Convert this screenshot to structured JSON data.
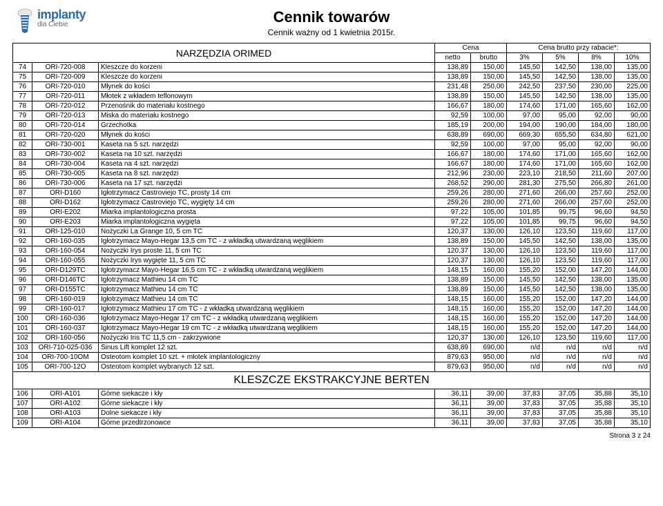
{
  "logo": {
    "line1": "implanty",
    "line2": "dla Ciebie"
  },
  "header": {
    "title": "Cennik towarów",
    "subtitle": "Cennik ważny od 1 kwietnia 2015r."
  },
  "table": {
    "section_label": "NARZĘDZIA ORIMED",
    "price_label": "Cena",
    "discount_label": "Cena brutto przy rabacie*:",
    "cols_price": [
      "netto",
      "brutto"
    ],
    "cols_disc": [
      "3%",
      "5%",
      "8%",
      "10%"
    ],
    "rows": [
      {
        "i": "74",
        "c": "ORI-720-008",
        "d": "Kleszcze do korzeni",
        "v": [
          "138,89",
          "150,00",
          "145,50",
          "142,50",
          "138,00",
          "135,00"
        ]
      },
      {
        "i": "75",
        "c": "ORI-720-009",
        "d": "Kleszcze do korzeni",
        "v": [
          "138,89",
          "150,00",
          "145,50",
          "142,50",
          "138,00",
          "135,00"
        ]
      },
      {
        "i": "76",
        "c": "ORI-720-010",
        "d": "Młynek do kości",
        "v": [
          "231,48",
          "250,00",
          "242,50",
          "237,50",
          "230,00",
          "225,00"
        ]
      },
      {
        "i": "77",
        "c": "ORI-720-011",
        "d": "Młotek z wkładem teflonowym",
        "v": [
          "138,89",
          "150,00",
          "145,50",
          "142,50",
          "138,00",
          "135,00"
        ]
      },
      {
        "i": "78",
        "c": "ORI-720-012",
        "d": "Przenośnik do materiału kostnego",
        "v": [
          "166,67",
          "180,00",
          "174,60",
          "171,00",
          "165,60",
          "162,00"
        ]
      },
      {
        "i": "79",
        "c": "ORI-720-013",
        "d": "Miska do materiału kostnego",
        "v": [
          "92,59",
          "100,00",
          "97,00",
          "95,00",
          "92,00",
          "90,00"
        ]
      },
      {
        "i": "80",
        "c": "ORI-720-014",
        "d": "Grzechotka",
        "v": [
          "185,19",
          "200,00",
          "194,00",
          "190,00",
          "184,00",
          "180,00"
        ]
      },
      {
        "i": "81",
        "c": "ORI-720-020",
        "d": "Młynek do kości",
        "v": [
          "638,89",
          "690,00",
          "669,30",
          "655,50",
          "634,80",
          "621,00"
        ]
      },
      {
        "i": "82",
        "c": "ORI-730-001",
        "d": "Kaseta na 5 szt. narzędzi",
        "v": [
          "92,59",
          "100,00",
          "97,00",
          "95,00",
          "92,00",
          "90,00"
        ]
      },
      {
        "i": "83",
        "c": "ORI-730-002",
        "d": "Kaseta na 10 szt. narzędzi",
        "v": [
          "166,67",
          "180,00",
          "174,60",
          "171,00",
          "165,60",
          "162,00"
        ]
      },
      {
        "i": "84",
        "c": "ORI-730-004",
        "d": "Kaseta na 4 szt. narzędzi",
        "v": [
          "166,67",
          "180,00",
          "174,60",
          "171,00",
          "165,60",
          "162,00"
        ]
      },
      {
        "i": "85",
        "c": "ORI-730-005",
        "d": "Kaseta na 8 szt. narzędzi",
        "v": [
          "212,96",
          "230,00",
          "223,10",
          "218,50",
          "211,60",
          "207,00"
        ]
      },
      {
        "i": "86",
        "c": "ORI-730-006",
        "d": "Kaseta na 17 szt. narzędzi",
        "v": [
          "268,52",
          "290,00",
          "281,30",
          "275,50",
          "266,80",
          "261,00"
        ]
      },
      {
        "i": "87",
        "c": "ORI-D160",
        "d": "Igłotrzymacz Castroviejo TC, prosty 14 cm",
        "v": [
          "259,26",
          "280,00",
          "271,60",
          "266,00",
          "257,60",
          "252,00"
        ]
      },
      {
        "i": "88",
        "c": "ORI-D162",
        "d": "Igłotrzymacz Castroviejo TC, wygięty 14 cm",
        "v": [
          "259,26",
          "280,00",
          "271,60",
          "266,00",
          "257,60",
          "252,00"
        ]
      },
      {
        "i": "89",
        "c": "ORI-E202",
        "d": "Miarka implantologiczna prosta",
        "v": [
          "97,22",
          "105,00",
          "101,85",
          "99,75",
          "96,60",
          "94,50"
        ]
      },
      {
        "i": "90",
        "c": "ORI-E203",
        "d": "Miarka implantologiczna wygięta",
        "v": [
          "97,22",
          "105,00",
          "101,85",
          "99,75",
          "96,60",
          "94,50"
        ]
      },
      {
        "i": "91",
        "c": "ORI-125-010",
        "d": "Nożyczki La Grange 10, 5 cm TC",
        "v": [
          "120,37",
          "130,00",
          "126,10",
          "123,50",
          "119,60",
          "117,00"
        ]
      },
      {
        "i": "92",
        "c": "ORI-160-035",
        "d": "Igłotrzymacz Mayo-Hegar 13,5 cm TC - z wkładką utwardzaną węglikiem",
        "v": [
          "138,89",
          "150,00",
          "145,50",
          "142,50",
          "138,00",
          "135,00"
        ]
      },
      {
        "i": "93",
        "c": "ORI-160-054",
        "d": "Nożyczki Irys proste 11, 5 cm TC",
        "v": [
          "120,37",
          "130,00",
          "126,10",
          "123,50",
          "119,60",
          "117,00"
        ]
      },
      {
        "i": "94",
        "c": "ORI-160-055",
        "d": "Nożyczki Irys wygięte 11, 5 cm TC",
        "v": [
          "120,37",
          "130,00",
          "126,10",
          "123,50",
          "119,60",
          "117,00"
        ]
      },
      {
        "i": "95",
        "c": "ORI-D129TC",
        "d": "Igłotrzymacz Mayo-Hegar 16,5 cm TC - z wkładką utwardzaną węglikiem",
        "v": [
          "148,15",
          "160,00",
          "155,20",
          "152,00",
          "147,20",
          "144,00"
        ]
      },
      {
        "i": "96",
        "c": "ORI-D146TC",
        "d": "Igłotrzymacz Mathieu 14 cm TC",
        "v": [
          "138,89",
          "150,00",
          "145,50",
          "142,50",
          "138,00",
          "135,00"
        ]
      },
      {
        "i": "97",
        "c": "ORI-D155TC",
        "d": "Igłotrzymacz Mathieu 14 cm TC",
        "v": [
          "138,89",
          "150,00",
          "145,50",
          "142,50",
          "138,00",
          "135,00"
        ]
      },
      {
        "i": "98",
        "c": "ORI-160-019",
        "d": "Igłotrzymacz Mathieu 14 cm TC",
        "v": [
          "148,15",
          "160,00",
          "155,20",
          "152,00",
          "147,20",
          "144,00"
        ]
      },
      {
        "i": "99",
        "c": "ORI-160-017",
        "d": "Igłotrzymacz Mathieu 17 cm TC - z wkładką utwardzaną węglikiem",
        "v": [
          "148,15",
          "160,00",
          "155,20",
          "152,00",
          "147,20",
          "144,00"
        ]
      },
      {
        "i": "100",
        "c": "ORI-160-036",
        "d": "Igłotrzymacz Mayo-Hegar 17 cm TC - z wkładką utwardzaną węglikiem",
        "v": [
          "148,15",
          "160,00",
          "155,20",
          "152,00",
          "147,20",
          "144,00"
        ]
      },
      {
        "i": "101",
        "c": "ORI-160-037",
        "d": "Igłotrzymacz Mayo-Hegar 19 cm TC - z wkładką utwardzaną węglikiem",
        "v": [
          "148,15",
          "160,00",
          "155,20",
          "152,00",
          "147,20",
          "144,00"
        ]
      },
      {
        "i": "102",
        "c": "ORI-160-056",
        "d": "Nożyczki Iris TC 11,5 cm - zakrzywione",
        "v": [
          "120,37",
          "130,00",
          "126,10",
          "123,50",
          "119,60",
          "117,00"
        ]
      },
      {
        "i": "103",
        "c": "ORI-710-025-036",
        "d": "Sinus Lift komplet 12 szt.",
        "v": [
          "638,89",
          "690,00",
          "n/d",
          "n/d",
          "n/d",
          "n/d"
        ]
      },
      {
        "i": "104",
        "c": "ORI-700-10OM",
        "d": "Osteotom komplet 10 szt. + młotek implantologiczny",
        "v": [
          "879,63",
          "950,00",
          "n/d",
          "n/d",
          "n/d",
          "n/d"
        ]
      },
      {
        "i": "105",
        "c": "ORI-700-12O",
        "d": "Osteotom komplet wybranych 12 szt.",
        "v": [
          "879,63",
          "950,00",
          "n/d",
          "n/d",
          "n/d",
          "n/d"
        ]
      }
    ],
    "section2": "KLESZCZE EKSTRAKCYJNE BERTEN",
    "rows2": [
      {
        "i": "106",
        "c": "ORI-A101",
        "d": "Górne siekacze i kły",
        "v": [
          "36,11",
          "39,00",
          "37,83",
          "37,05",
          "35,88",
          "35,10"
        ]
      },
      {
        "i": "107",
        "c": "ORI-A102",
        "d": "Górne siekacze i kły",
        "v": [
          "36,11",
          "39,00",
          "37,83",
          "37,05",
          "35,88",
          "35,10"
        ]
      },
      {
        "i": "108",
        "c": "ORI-A103",
        "d": "Dolne siekacze i kły",
        "v": [
          "36,11",
          "39,00",
          "37,83",
          "37,05",
          "35,88",
          "35,10"
        ]
      },
      {
        "i": "109",
        "c": "ORI-A104",
        "d": "Górne przedtrzonowce",
        "v": [
          "36,11",
          "39,00",
          "37,83",
          "37,05",
          "35,88",
          "35,10"
        ]
      }
    ]
  },
  "footer": "Strona 3 z 24"
}
